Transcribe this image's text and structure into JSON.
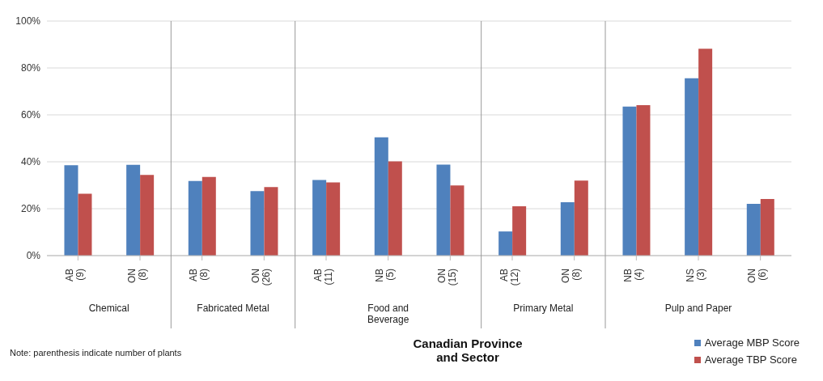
{
  "chart_data": {
    "type": "bar",
    "categories": [
      "AB (9)",
      "ON (8)",
      "AB (8)",
      "ON (26)",
      "AB (11)",
      "NB (5)",
      "ON (15)",
      "AB (12)",
      "ON (8)",
      "NB (4)",
      "NS (3)",
      "ON (6)"
    ],
    "series": [
      {
        "name": "Average MBP Score",
        "color": "#4f81bd",
        "values": [
          38.5,
          38.7,
          31.8,
          27.5,
          32.2,
          50.4,
          38.8,
          10.3,
          22.8,
          63.5,
          75.6,
          22.1
        ]
      },
      {
        "name": "Average TBP Score",
        "color": "#c0504d",
        "values": [
          26.4,
          34.4,
          33.5,
          29.2,
          31.2,
          40.2,
          29.9,
          21.0,
          32.0,
          64.1,
          88.2,
          24.1
        ]
      }
    ],
    "ylim": [
      0,
      100
    ],
    "yticks": [
      {
        "value": 0,
        "label": "0%"
      },
      {
        "value": 20,
        "label": "20%"
      },
      {
        "value": 40,
        "label": "40%"
      },
      {
        "value": 60,
        "label": "60%"
      },
      {
        "value": 80,
        "label": "80%"
      },
      {
        "value": 100,
        "label": "100%"
      }
    ],
    "xlabel": "Canadian Province and Sector",
    "annotations": [
      "Chemical",
      "Fabricated Metal",
      "Food and Beverage",
      "Primary Metal",
      "Pulp and Paper",
      "Note: parenthesis indicate number of plants"
    ],
    "grid": "y",
    "legend": "bottom right"
  }
}
